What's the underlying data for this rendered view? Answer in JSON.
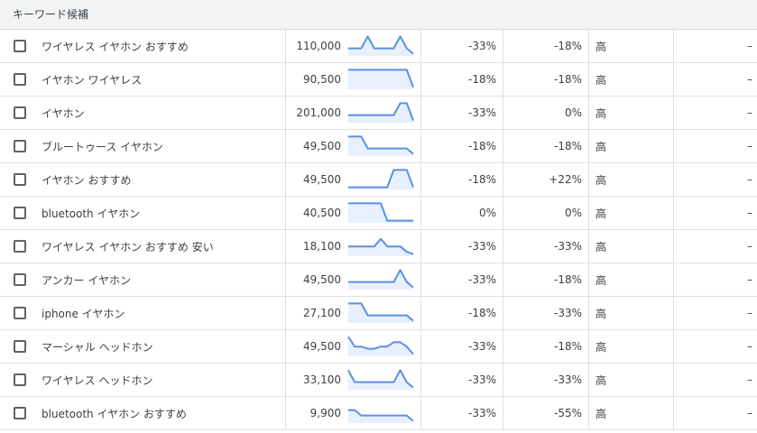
{
  "header": {
    "title": "キーワード候補"
  },
  "rows": [
    {
      "keyword": "ワイヤレス イヤホン おすすめ",
      "volume": "110,000",
      "spark": [
        0.35,
        0.35,
        0.35,
        0.9,
        0.35,
        0.35,
        0.35,
        0.35,
        0.9,
        0.35,
        0.1
      ],
      "q_change": "-33%",
      "y_change": "-18%",
      "competition": "高",
      "dash": "–"
    },
    {
      "keyword": "イヤホン ワイヤレス",
      "volume": "90,500",
      "spark": [
        0.9,
        0.9,
        0.9,
        0.9,
        0.9,
        0.9,
        0.9,
        0.9,
        0.9,
        0.9,
        0.1
      ],
      "q_change": "-18%",
      "y_change": "-18%",
      "competition": "高",
      "dash": "–"
    },
    {
      "keyword": "イヤホン",
      "volume": "201,000",
      "spark": [
        0.35,
        0.35,
        0.35,
        0.35,
        0.35,
        0.35,
        0.35,
        0.35,
        0.9,
        0.9,
        0.1
      ],
      "q_change": "-33%",
      "y_change": "0%",
      "competition": "高",
      "dash": "–"
    },
    {
      "keyword": "ブルートゥース イヤホン",
      "volume": "49,500",
      "spark": [
        0.9,
        0.9,
        0.9,
        0.35,
        0.35,
        0.35,
        0.35,
        0.35,
        0.35,
        0.35,
        0.1
      ],
      "q_change": "-18%",
      "y_change": "-18%",
      "competition": "高",
      "dash": "–"
    },
    {
      "keyword": "イヤホン おすすめ",
      "volume": "49,500",
      "spark": [
        0.1,
        0.1,
        0.1,
        0.1,
        0.1,
        0.1,
        0.1,
        0.9,
        0.9,
        0.9,
        0.1
      ],
      "q_change": "-18%",
      "y_change": "+22%",
      "competition": "高",
      "dash": "–"
    },
    {
      "keyword": "bluetooth イヤホン",
      "volume": "40,500",
      "spark": [
        0.9,
        0.9,
        0.9,
        0.9,
        0.9,
        0.9,
        0.1,
        0.1,
        0.1,
        0.1,
        0.1
      ],
      "q_change": "0%",
      "y_change": "0%",
      "competition": "高",
      "dash": "–"
    },
    {
      "keyword": "ワイヤレス イヤホン おすすめ 安い",
      "volume": "18,100",
      "spark": [
        0.45,
        0.45,
        0.45,
        0.45,
        0.45,
        0.8,
        0.45,
        0.45,
        0.45,
        0.2,
        0.1
      ],
      "q_change": "-33%",
      "y_change": "-33%",
      "competition": "高",
      "dash": "–"
    },
    {
      "keyword": "アンカー イヤホン",
      "volume": "49,500",
      "spark": [
        0.35,
        0.35,
        0.35,
        0.35,
        0.35,
        0.35,
        0.35,
        0.35,
        0.9,
        0.35,
        0.1
      ],
      "q_change": "-33%",
      "y_change": "-18%",
      "competition": "高",
      "dash": "–"
    },
    {
      "keyword": "iphone イヤホン",
      "volume": "27,100",
      "spark": [
        0.9,
        0.9,
        0.9,
        0.35,
        0.35,
        0.35,
        0.35,
        0.35,
        0.35,
        0.35,
        0.1
      ],
      "q_change": "-18%",
      "y_change": "-33%",
      "competition": "高",
      "dash": "–"
    },
    {
      "keyword": "マーシャル ヘッドホン",
      "volume": "49,500",
      "spark": [
        0.9,
        0.45,
        0.45,
        0.35,
        0.35,
        0.45,
        0.45,
        0.65,
        0.65,
        0.45,
        0.1
      ],
      "q_change": "-33%",
      "y_change": "-18%",
      "competition": "高",
      "dash": "–"
    },
    {
      "keyword": "ワイヤレス ヘッドホン",
      "volume": "33,100",
      "spark": [
        0.9,
        0.35,
        0.35,
        0.35,
        0.35,
        0.35,
        0.35,
        0.35,
        0.9,
        0.35,
        0.1
      ],
      "q_change": "-33%",
      "y_change": "-33%",
      "competition": "高",
      "dash": "–"
    },
    {
      "keyword": "bluetooth イヤホン おすすめ",
      "volume": "9,900",
      "spark": [
        0.6,
        0.6,
        0.35,
        0.35,
        0.35,
        0.35,
        0.35,
        0.35,
        0.35,
        0.35,
        0.1
      ],
      "q_change": "-33%",
      "y_change": "-55%",
      "competition": "高",
      "dash": "–"
    }
  ],
  "colors": {
    "spark_line": "#5c8fe6",
    "spark_fill": "#e8f0fe"
  }
}
